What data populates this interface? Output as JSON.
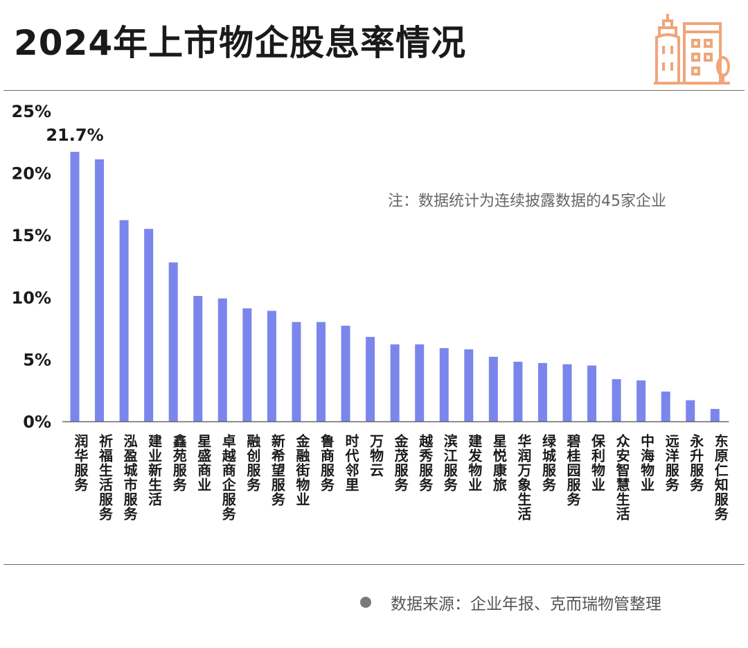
{
  "title": "2024年上市物企股息率情况",
  "note": "注：数据统计为连续披露数据的45家企业",
  "source": "数据来源：企业年报、克而瑞物管整理",
  "colors": {
    "bar": "#7b86ec",
    "axis": "#666666",
    "rule": "#6b6b6b",
    "logo": "#f0a57a"
  },
  "chart_data": {
    "type": "bar",
    "categories": [
      "润华服务",
      "祈福生活服务",
      "泓盈城市服务",
      "建业新生活",
      "鑫苑服务",
      "星盛商业",
      "卓越商企服务",
      "融创服务",
      "新希望服务",
      "金融街物业",
      "鲁商服务",
      "时代邻里",
      "万物云",
      "金茂服务",
      "越秀服务",
      "滨江服务",
      "建发物业",
      "星悦康旅",
      "华润万象生活",
      "绿城服务",
      "碧桂园服务",
      "保利物业",
      "众安智慧生活",
      "中海物业",
      "远洋服务",
      "永升服务",
      "东原仁知服务"
    ],
    "values": [
      21.7,
      21.1,
      16.2,
      15.5,
      12.8,
      10.1,
      9.9,
      9.1,
      8.9,
      8.0,
      8.0,
      7.7,
      6.8,
      6.2,
      6.2,
      5.9,
      5.8,
      5.2,
      4.8,
      4.7,
      4.6,
      4.5,
      3.4,
      3.3,
      2.4,
      1.7,
      1.0
    ],
    "yticks": [
      "0%",
      "5%",
      "10%",
      "15%",
      "20%",
      "25%"
    ],
    "ylim": [
      0,
      25
    ],
    "annotations": [
      {
        "category": "润华服务",
        "label": "21.7%"
      }
    ],
    "grid": false,
    "legend": "none"
  }
}
